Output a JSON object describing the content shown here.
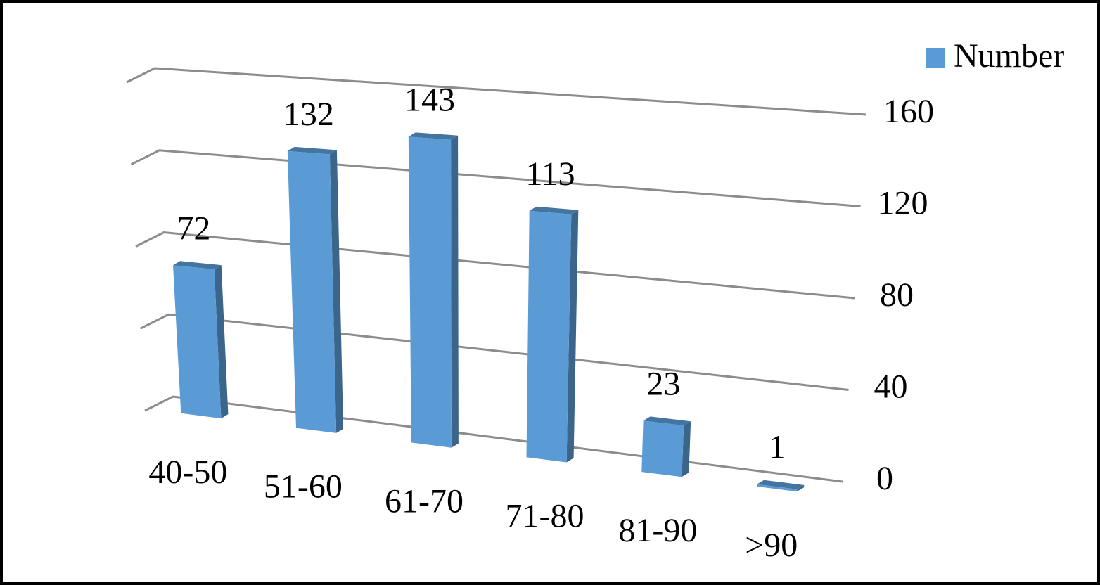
{
  "chart_data": {
    "type": "bar3d",
    "categories": [
      "40-50",
      "51-60",
      "61-70",
      "71-80",
      "81-90",
      ">90"
    ],
    "series": [
      {
        "name": "Number",
        "color": "#5b9bd5",
        "values": [
          72,
          132,
          143,
          113,
          23,
          1
        ]
      }
    ],
    "ylim": [
      0,
      160
    ],
    "yticks": [
      0,
      40,
      80,
      120,
      160
    ],
    "grid": true,
    "legend": "top-right"
  }
}
